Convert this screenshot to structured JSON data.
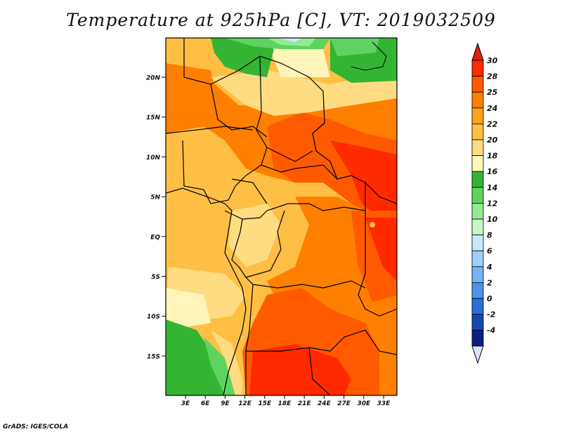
{
  "title": "Temperature at 925hPa [C], VT: 2019032509",
  "credit": "GrADS: IGES/COLA",
  "map": {
    "lat_labels": [
      "20N",
      "15N",
      "10N",
      "5N",
      "EQ",
      "5S",
      "10S",
      "15S"
    ],
    "lon_labels": [
      "3E",
      "6E",
      "9E",
      "12E",
      "15E",
      "18E",
      "21E",
      "24E",
      "27E",
      "30E",
      "33E"
    ]
  },
  "colorbar": {
    "labels": [
      "30",
      "28",
      "25",
      "24",
      "22",
      "20",
      "18",
      "16",
      "14",
      "12",
      "10",
      "8",
      "6",
      "4",
      "2",
      "0",
      "-2",
      "-4"
    ],
    "colors": [
      "#ff2a00",
      "#ff5a00",
      "#ff7f00",
      "#ffa21a",
      "#ffbf45",
      "#ffdc82",
      "#fff5ba",
      "#33b533",
      "#5fd35f",
      "#92ea92",
      "#c6f7c6",
      "#c8e8ff",
      "#9dd0ff",
      "#73b4f5",
      "#4b94eb",
      "#2a6fd8",
      "#1446b4",
      "#0a1e82"
    ],
    "top_color": "#e01f10",
    "bottom_color": "#e0e0ff"
  }
}
